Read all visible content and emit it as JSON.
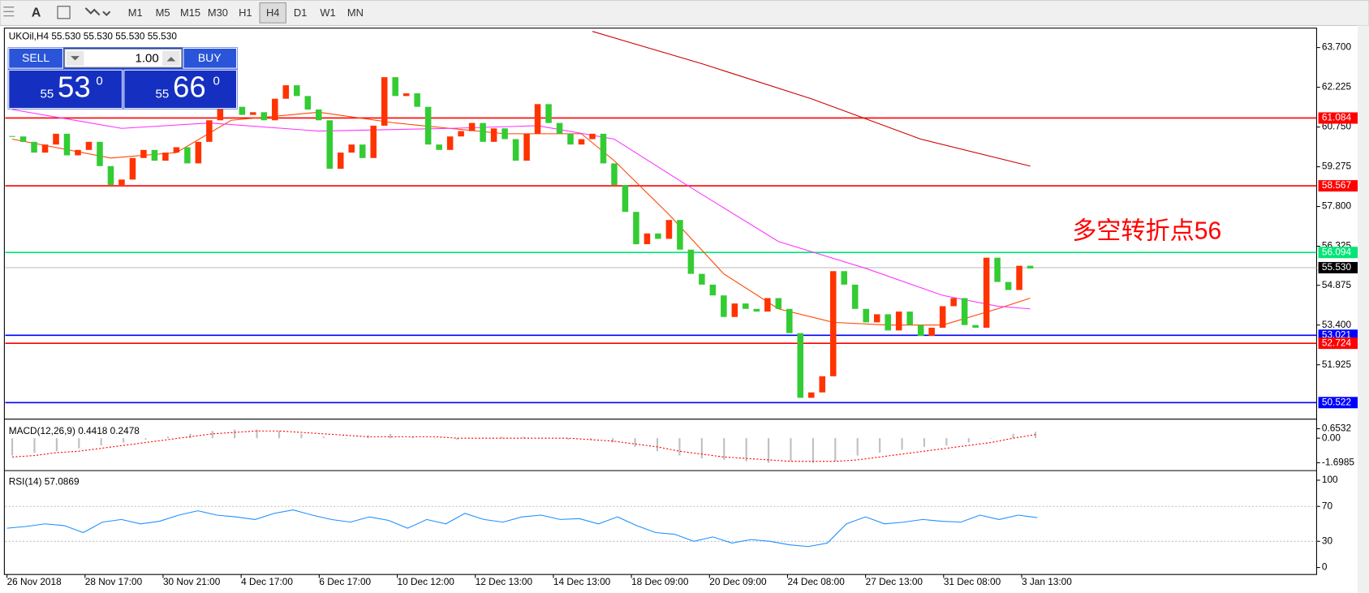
{
  "toolbar": {
    "buttons": [
      "M1",
      "M5",
      "M15",
      "M30",
      "H1",
      "H4",
      "D1",
      "W1",
      "MN"
    ],
    "active": "H4"
  },
  "symbol_info": "UKOil,H4  55.530 55.530 55.530 55.530",
  "trade_panel": {
    "sell": "SELL",
    "lots": "1.00",
    "buy": "BUY",
    "sell_price": {
      "big": "55",
      "main": "53",
      "small": "0"
    },
    "buy_price": {
      "big": "55",
      "main": "66",
      "small": "0"
    }
  },
  "chart_data": [
    {
      "type": "candlestick",
      "closes": [
        60.4,
        60.2,
        59.8,
        60.1,
        60.5,
        59.7,
        59.9,
        60.2,
        59.3,
        58.6,
        58.8,
        59.6,
        59.9,
        59.5,
        59.8,
        60.0,
        59.4,
        60.2,
        61.0,
        61.6,
        61.5,
        61.2,
        61.3,
        61.0,
        61.8,
        62.3,
        61.9,
        61.4,
        61.0,
        59.2,
        59.8,
        60.1,
        59.6,
        60.8,
        62.6,
        61.9,
        62.0,
        61.5,
        60.1,
        59.9,
        60.4,
        60.6,
        60.9,
        60.2,
        60.7,
        60.3,
        59.5,
        60.5,
        61.6,
        60.9,
        60.5,
        60.1,
        60.3,
        60.5,
        59.4,
        58.6,
        57.6,
        56.4,
        56.8,
        56.6,
        57.3,
        56.2,
        55.3,
        54.9,
        54.5,
        53.7,
        54.2,
        54.0,
        53.9,
        54.4,
        54.0,
        53.1,
        50.7,
        50.9,
        51.5,
        55.4,
        54.9,
        54.0,
        53.5,
        53.8,
        53.2,
        53.9,
        53.4,
        53.0,
        53.3,
        54.1,
        54.4,
        53.4,
        53.3,
        55.9,
        55.0,
        54.7,
        55.6,
        55.5
      ],
      "up_color": "#ff3300",
      "down_color": "#33cc33",
      "ylim": [
        49.973,
        64.356
      ],
      "yticks": [
        {
          "value": 63.7,
          "label": "63.700"
        },
        62.225,
        {
          "value": 60.75,
          "label": "60.750"
        },
        59.275,
        {
          "value": 57.8,
          "label": "57.800"
        },
        56.325,
        54.875,
        {
          "value": 53.4,
          "label": "53.400"
        },
        51.925
      ],
      "levels": [
        {
          "value": 61.084,
          "color": "#ff0000"
        },
        {
          "value": 58.567,
          "color": "#ff0000"
        },
        {
          "value": 56.094,
          "color": "#00e676"
        },
        {
          "value": 55.53,
          "label": "55.530",
          "color": "#c0c0c0"
        },
        {
          "value": 53.021,
          "color": "#0000ff"
        },
        {
          "value": 52.724,
          "color": "#ff0000"
        },
        {
          "value": 50.522,
          "color": "#0000ff"
        }
      ],
      "moving_averages": [
        {
          "color": "#ff4500",
          "x": [
            0,
            9,
            15,
            20,
            28,
            35,
            45,
            52,
            55,
            60,
            65,
            70,
            75,
            80,
            85,
            90,
            93
          ],
          "values": [
            60.3,
            59.6,
            59.8,
            61.0,
            61.3,
            60.9,
            60.5,
            60.5,
            59.5,
            57.5,
            55.3,
            54.0,
            53.5,
            53.4,
            53.4,
            54.0,
            54.4
          ]
        },
        {
          "color": "#ff33ff",
          "x": [
            0,
            10,
            18,
            28,
            40,
            48,
            55,
            62,
            70,
            78,
            85,
            90,
            93
          ],
          "values": [
            61.4,
            60.7,
            60.9,
            60.6,
            60.7,
            60.8,
            60.3,
            58.5,
            56.5,
            55.5,
            54.5,
            54.1,
            54.0
          ]
        },
        {
          "color": "#cc0000",
          "x": [
            53,
            63,
            73,
            83,
            93
          ],
          "values": [
            64.3,
            63.1,
            61.8,
            60.3,
            59.3
          ]
        }
      ],
      "annotation": "多空转折点56",
      "x_labels": [
        "26 Nov 2018",
        "28 Nov 17:00",
        "30 Nov 21:00",
        "4 Dec 17:00",
        "6 Dec 17:00",
        "10 Dec 12:00",
        "12 Dec 13:00",
        "14 Dec 13:00",
        "18 Dec 09:00",
        "20 Dec 09:00",
        "24 Dec 08:00",
        "27 Dec 13:00",
        "31 Dec 08:00",
        "3 Jan 13:00"
      ]
    },
    {
      "type": "macd",
      "title": "MACD(12,26,9) 0.4418 0.2478",
      "values": [
        -1.2,
        -1.0,
        -0.9,
        -0.7,
        -0.5,
        -0.3,
        -0.1,
        0.1,
        0.3,
        0.5,
        0.6,
        0.6,
        0.5,
        0.3,
        0.1,
        0.0,
        0.2,
        0.3,
        0.1,
        0.0,
        -0.1,
        0.0,
        0.1,
        0.1,
        0.0,
        -0.1,
        -0.1,
        -0.3,
        -0.6,
        -0.9,
        -1.2,
        -1.4,
        -1.5,
        -1.6,
        -1.7,
        -1.6,
        -1.7,
        -1.6,
        -1.2,
        -1.0,
        -0.8,
        -0.6,
        -0.5,
        -0.3,
        0.0,
        0.3,
        0.4418
      ],
      "signal": [
        -1.3,
        -1.2,
        -1.0,
        -0.9,
        -0.7,
        -0.5,
        -0.3,
        -0.1,
        0.1,
        0.3,
        0.4,
        0.5,
        0.5,
        0.4,
        0.3,
        0.2,
        0.1,
        0.1,
        0.1,
        0.1,
        0.0,
        0.0,
        0.0,
        0.0,
        0.0,
        0.0,
        -0.1,
        -0.2,
        -0.4,
        -0.6,
        -0.9,
        -1.1,
        -1.3,
        -1.4,
        -1.5,
        -1.6,
        -1.6,
        -1.6,
        -1.5,
        -1.3,
        -1.1,
        -0.9,
        -0.7,
        -0.5,
        -0.3,
        0.0,
        0.2478
      ],
      "bar_color": "#c0c0c0",
      "signal_color": "#ff0000",
      "ylim": [
        -2.181,
        1.196
      ],
      "yticks": [
        0.6532,
        {
          "value": 0,
          "label": "0.00"
        },
        -1.6985
      ]
    },
    {
      "type": "rsi",
      "title": "RSI(14) 57.0869",
      "values": [
        45,
        47,
        50,
        48,
        40,
        52,
        55,
        50,
        53,
        60,
        65,
        60,
        58,
        55,
        62,
        66,
        60,
        55,
        52,
        58,
        54,
        45,
        55,
        50,
        62,
        55,
        52,
        58,
        60,
        55,
        56,
        50,
        58,
        48,
        40,
        38,
        30,
        35,
        28,
        32,
        30,
        26,
        24,
        28,
        50,
        58,
        50,
        52,
        55,
        53,
        52,
        60,
        55,
        60,
        57.0869
      ],
      "color": "#1e90ff",
      "ylim": [
        -7,
        109
      ],
      "yticks": [
        100,
        70,
        30,
        0
      ],
      "levels": [
        70,
        30
      ]
    }
  ]
}
